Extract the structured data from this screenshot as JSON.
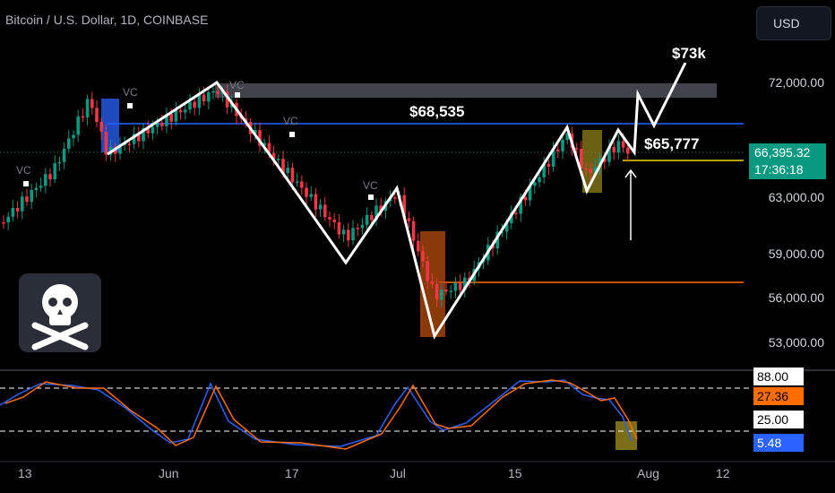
{
  "header": {
    "title": "Bitcoin / U.S. Dollar, 1D, COINBASE"
  },
  "currency_button": {
    "label": "USD"
  },
  "price_axis": [
    "72,000.00",
    "63,000.00",
    "59,000.00",
    "56,000.00",
    "53,000.00"
  ],
  "current_price": {
    "price": "66,395.32",
    "countdown": "17:36:18"
  },
  "time_axis": [
    "13",
    "Jun",
    "17",
    "Jul",
    "15",
    "Aug",
    "12"
  ],
  "annotations": {
    "target": "$73k",
    "resistance": "$68,535",
    "support": "$65,777"
  },
  "vc_labels": [
    "VC",
    "VC",
    "VC",
    "VC",
    "VC"
  ],
  "oscillator": {
    "labels": [
      "88.00",
      "27.36",
      "25.00",
      "5.48"
    ],
    "colors": {
      "k": "#2962ff",
      "d": "#ff6d00"
    }
  },
  "colors": {
    "up": "#089981",
    "down": "#f23645",
    "zigzag": "#ffffff",
    "resistance_line": "#2962ff",
    "support_line": "#f0d800",
    "orange_line": "#ff6d00"
  },
  "icons": {
    "skull_crossbones": "skull-crossbones-icon"
  }
}
